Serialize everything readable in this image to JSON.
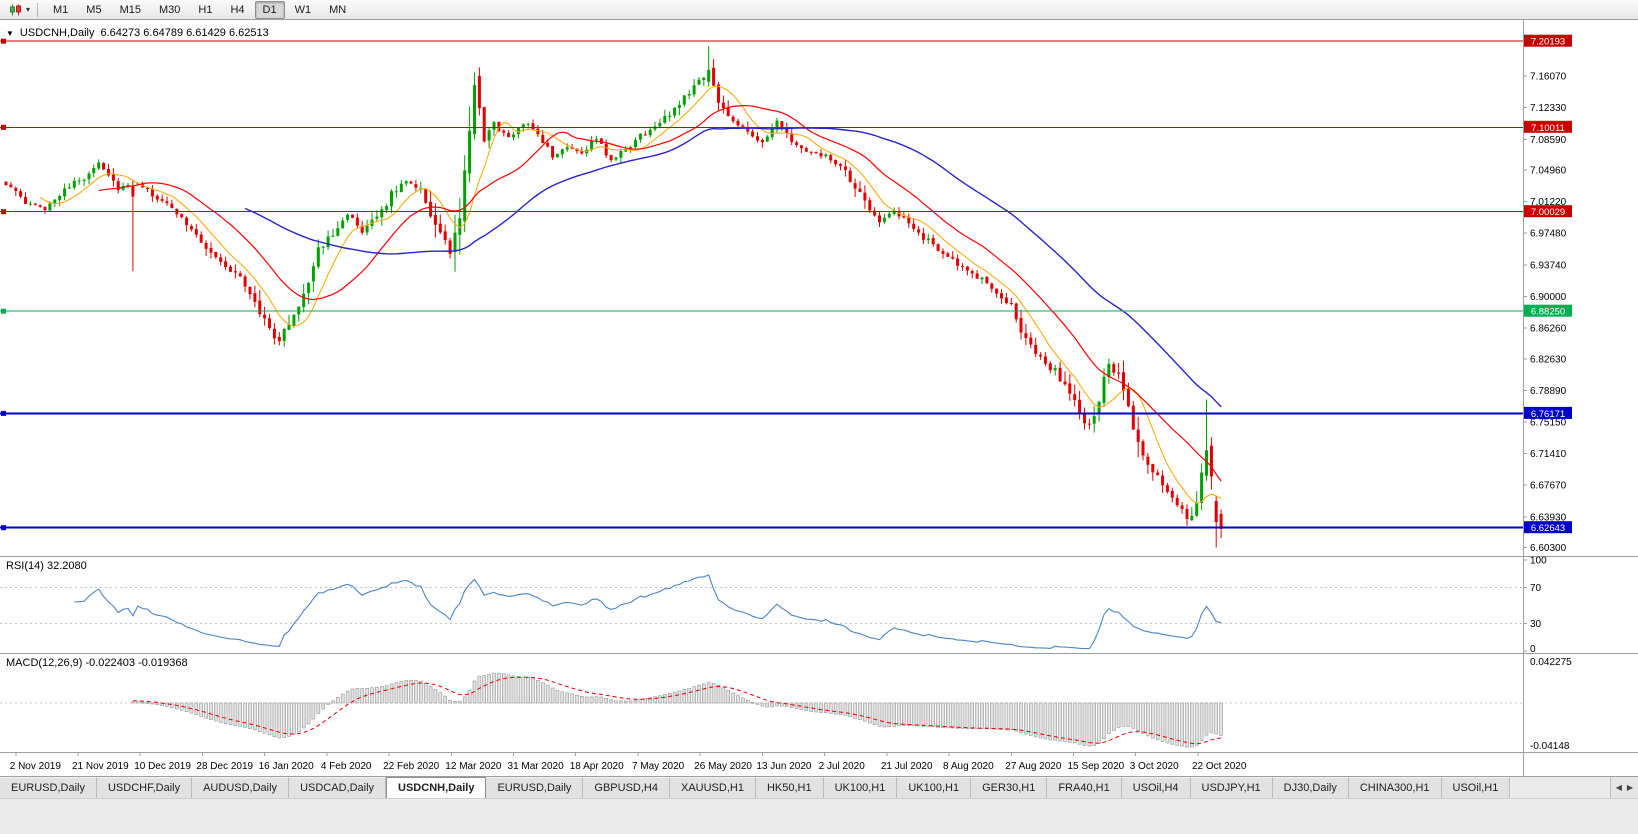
{
  "toolbar": {
    "chart_type_icon": "candlestick-chart-icon",
    "timeframes": [
      "M1",
      "M5",
      "M15",
      "M30",
      "H1",
      "H4",
      "D1",
      "W1",
      "MN"
    ],
    "active_timeframe": "D1"
  },
  "chart_header": {
    "symbol": "USDCNH,Daily",
    "ohlc": "6.64273 6.64789 6.61429 6.62513"
  },
  "chart_data": {
    "type": "candlestick",
    "symbol": "USDCNH",
    "timeframe": "Daily",
    "bars": 250,
    "last_bar": {
      "open": 6.64273,
      "high": 6.64789,
      "low": 6.61429,
      "close": 6.62513
    },
    "price_axis": {
      "max": 7.227,
      "min": 6.593,
      "ticks": [
        "7.16070",
        "7.12330",
        "7.08590",
        "7.04960",
        "7.01220",
        "6.97480",
        "6.93740",
        "6.90000",
        "6.86260",
        "6.82630",
        "6.78890",
        "6.75150",
        "6.71410",
        "6.67670",
        "6.63930",
        "6.60300"
      ]
    },
    "time_axis": [
      "2 Nov 2019",
      "21 Nov 2019",
      "10 Dec 2019",
      "28 Dec 2019",
      "16 Jan 2020",
      "4 Feb 2020",
      "22 Feb 2020",
      "12 Mar 2020",
      "31 Mar 2020",
      "18 Apr 2020",
      "7 May 2020",
      "26 May 2020",
      "13 Jun 2020",
      "2 Jul 2020",
      "21 Jul 2020",
      "8 Aug 2020",
      "27 Aug 2020",
      "15 Sep 2020",
      "3 Oct 2020",
      "22 Oct 2020"
    ],
    "horizontal_levels": [
      {
        "price": 7.20193,
        "label": "7.20193",
        "color": "#C80000",
        "width": 1
      },
      {
        "price": 7.10011,
        "label": "7.10011",
        "color": "#C80000",
        "width": 1
      },
      {
        "price": 7.00029,
        "label": "7.00029",
        "color": "#C80000",
        "width": 1
      },
      {
        "price": 6.8825,
        "label": "6.88250",
        "color": "#00B050",
        "width": 1
      },
      {
        "price": 6.76171,
        "label": "6.76171",
        "color": "#0000C8",
        "width": 2
      },
      {
        "price": 6.62643,
        "label": "6.62643",
        "color": "#0000C8",
        "width": 2
      }
    ],
    "colors": {
      "up": "#00A000",
      "down": "#E00000",
      "ma_fast": "#FFA500",
      "ma_mid": "#FF0000",
      "ma_slow": "#2525C8"
    },
    "moving_averages": [
      {
        "period": 8,
        "color_key": "ma_fast",
        "style": "solid"
      },
      {
        "period": 20,
        "color_key": "ma_mid",
        "style": "solid"
      },
      {
        "period": 50,
        "color_key": "ma_slow",
        "style": "solid"
      }
    ],
    "close_anchors": [
      [
        0,
        7.034
      ],
      [
        4,
        7.01
      ],
      [
        8,
        7.004
      ],
      [
        12,
        7.028
      ],
      [
        16,
        7.04
      ],
      [
        19,
        7.06
      ],
      [
        23,
        7.028
      ],
      [
        27,
        7.034
      ],
      [
        31,
        7.016
      ],
      [
        36,
        6.995
      ],
      [
        40,
        6.965
      ],
      [
        44,
        6.94
      ],
      [
        48,
        6.922
      ],
      [
        51,
        6.895
      ],
      [
        54,
        6.86
      ],
      [
        56,
        6.847
      ],
      [
        58,
        6.868
      ],
      [
        61,
        6.905
      ],
      [
        64,
        6.952
      ],
      [
        67,
        6.976
      ],
      [
        70,
        6.999
      ],
      [
        73,
        6.974
      ],
      [
        76,
        6.994
      ],
      [
        79,
        7.02
      ],
      [
        82,
        7.038
      ],
      [
        85,
        7.028
      ],
      [
        88,
        6.984
      ],
      [
        91,
        6.952
      ],
      [
        93,
        6.996
      ],
      [
        95,
        7.09
      ],
      [
        96,
        7.15
      ],
      [
        98,
        7.086
      ],
      [
        100,
        7.104
      ],
      [
        103,
        7.086
      ],
      [
        106,
        7.106
      ],
      [
        109,
        7.094
      ],
      [
        112,
        7.064
      ],
      [
        115,
        7.078
      ],
      [
        118,
        7.07
      ],
      [
        121,
        7.088
      ],
      [
        124,
        7.06
      ],
      [
        127,
        7.074
      ],
      [
        130,
        7.09
      ],
      [
        133,
        7.1
      ],
      [
        136,
        7.116
      ],
      [
        139,
        7.136
      ],
      [
        142,
        7.156
      ],
      [
        144,
        7.168
      ],
      [
        146,
        7.128
      ],
      [
        149,
        7.11
      ],
      [
        152,
        7.096
      ],
      [
        155,
        7.08
      ],
      [
        158,
        7.106
      ],
      [
        161,
        7.084
      ],
      [
        164,
        7.07
      ],
      [
        168,
        7.066
      ],
      [
        172,
        7.046
      ],
      [
        176,
        7.01
      ],
      [
        179,
        6.99
      ],
      [
        182,
        7.0
      ],
      [
        185,
        6.986
      ],
      [
        188,
        6.97
      ],
      [
        191,
        6.956
      ],
      [
        194,
        6.944
      ],
      [
        197,
        6.928
      ],
      [
        200,
        6.92
      ],
      [
        203,
        6.906
      ],
      [
        206,
        6.886
      ],
      [
        209,
        6.85
      ],
      [
        212,
        6.826
      ],
      [
        215,
        6.812
      ],
      [
        218,
        6.786
      ],
      [
        220,
        6.76
      ],
      [
        222,
        6.746
      ],
      [
        224,
        6.78
      ],
      [
        226,
        6.82
      ],
      [
        228,
        6.802
      ],
      [
        230,
        6.77
      ],
      [
        232,
        6.72
      ],
      [
        234,
        6.698
      ],
      [
        236,
        6.686
      ],
      [
        238,
        6.67
      ],
      [
        240,
        6.656
      ],
      [
        242,
        6.638
      ],
      [
        244,
        6.656
      ],
      [
        245,
        6.686
      ],
      [
        246,
        6.716
      ],
      [
        247,
        6.69
      ],
      [
        248,
        6.634
      ],
      [
        249,
        6.625
      ]
    ],
    "candle_overrides": [
      {
        "i": 26,
        "o": 7.03,
        "h": 7.038,
        "l": 6.93,
        "c": 7.018
      },
      {
        "i": 56,
        "o": 6.852,
        "h": 6.858,
        "l": 6.842,
        "c": 6.847
      },
      {
        "i": 96,
        "o": 7.092,
        "h": 7.165,
        "l": 7.086,
        "c": 7.15
      },
      {
        "i": 144,
        "o": 7.154,
        "h": 7.196,
        "l": 7.148,
        "c": 7.168
      },
      {
        "i": 246,
        "o": 6.688,
        "h": 6.778,
        "l": 6.682,
        "c": 6.718
      },
      {
        "i": 248,
        "o": 6.658,
        "h": 6.664,
        "l": 6.603,
        "c": 6.633
      },
      {
        "i": 249,
        "o": 6.64273,
        "h": 6.64789,
        "l": 6.61429,
        "c": 6.62513
      }
    ],
    "indicators": [
      {
        "name": "RSI",
        "params": "14",
        "text": "RSI(14) 32.2080",
        "value": "32.2080",
        "ticks": [
          "100",
          "70",
          "30",
          "0"
        ],
        "levels": [
          70,
          30
        ],
        "color": "#4A85C8"
      },
      {
        "name": "MACD",
        "params": "12,26,9",
        "text": "MACD(12,26,9) -0.022403 -0.019368",
        "values": "-0.022403 -0.019368",
        "ticks": [
          "0.042275",
          "-0.04148"
        ],
        "hist_color": "#E3E3E3",
        "hist_stroke": "#969696",
        "signal_color": "#E00000"
      }
    ]
  },
  "tabs": {
    "items": [
      {
        "label": "EURUSD,Daily",
        "active": false
      },
      {
        "label": "USDCHF,Daily",
        "active": false
      },
      {
        "label": "AUDUSD,Daily",
        "active": false
      },
      {
        "label": "USDCAD,Daily",
        "active": false
      },
      {
        "label": "USDCNH,Daily",
        "active": true
      },
      {
        "label": "EURUSD,Daily",
        "active": false
      },
      {
        "label": "GBPUSD,H4",
        "active": false
      },
      {
        "label": "XAUUSD,H1",
        "active": false
      },
      {
        "label": "HK50,H1",
        "active": false
      },
      {
        "label": "UK100,H1",
        "active": false
      },
      {
        "label": "UK100,H1",
        "active": false
      },
      {
        "label": "GER30,H1",
        "active": false
      },
      {
        "label": "FRA40,H1",
        "active": false
      },
      {
        "label": "USOil,H4",
        "active": false
      },
      {
        "label": "USDJPY,H1",
        "active": false
      },
      {
        "label": "DJ30,Daily",
        "active": false
      },
      {
        "label": "CHINA300,H1",
        "active": false
      },
      {
        "label": "USOil,H1",
        "active": false
      }
    ]
  }
}
